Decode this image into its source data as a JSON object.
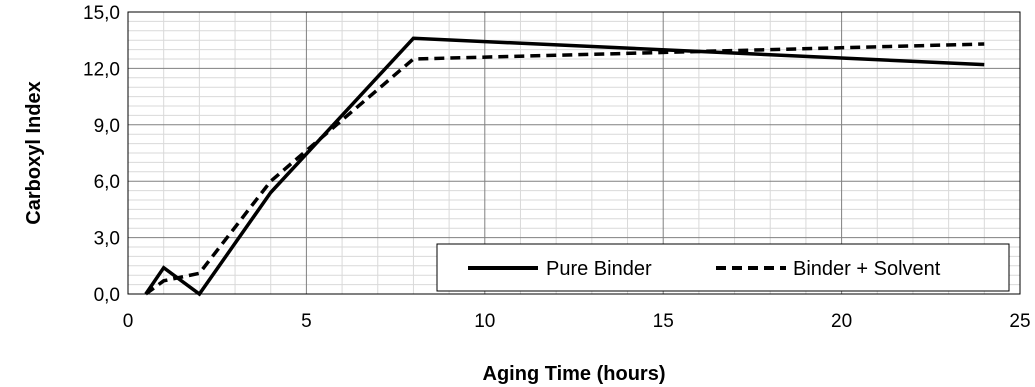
{
  "chart_data": {
    "type": "line",
    "xlabel": "Aging Time (hours)",
    "ylabel": "Carboxyl Index",
    "xlim": [
      0,
      25
    ],
    "ylim": [
      0,
      15
    ],
    "x_ticks": [
      0,
      5,
      10,
      15,
      20,
      25
    ],
    "x_tick_labels": [
      "0",
      "5",
      "10",
      "15",
      "20",
      "25"
    ],
    "y_ticks": [
      0,
      3,
      6,
      9,
      12,
      15
    ],
    "y_tick_labels": [
      "0,0",
      "3,0",
      "6,0",
      "9,0",
      "12,0",
      "15,0"
    ],
    "grid": true,
    "legend_position": "bottom-right",
    "series": [
      {
        "name": "Pure Binder",
        "style": "solid",
        "color": "#000000",
        "x": [
          0.5,
          1,
          2,
          4,
          8,
          24
        ],
        "y": [
          0.0,
          1.4,
          0.0,
          5.4,
          13.6,
          12.2
        ]
      },
      {
        "name": "Binder + Solvent",
        "style": "dashed",
        "color": "#000000",
        "x": [
          0.5,
          1,
          2,
          4,
          8,
          24
        ],
        "y": [
          0.0,
          0.7,
          1.1,
          6.0,
          12.5,
          13.3
        ]
      }
    ]
  }
}
